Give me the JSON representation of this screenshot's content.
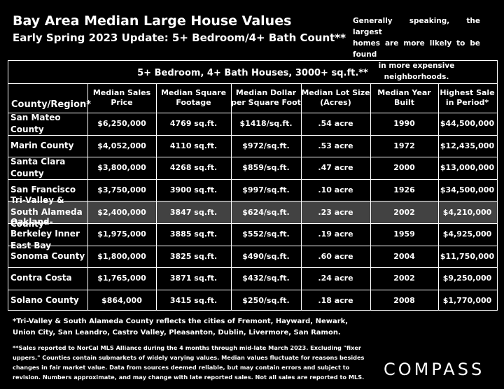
{
  "header": {
    "title": "Bay Area Median Large House Values",
    "subtitle": "Early Spring 2023 Update: 5+ Bedroom/4+ Bath Count**"
  },
  "note_lines": [
    "Generally speaking, the largest",
    "homes are more likely to be found",
    "in more expensive neighborhoods."
  ],
  "table": {
    "title": "5+ Bedroom, 4+ Bath Houses, 3000+ sq.ft.**",
    "columns": [
      [
        "County/Region*"
      ],
      [
        "Median Sales",
        "Price"
      ],
      [
        "Median Square",
        "Footage"
      ],
      [
        "Median Dollar",
        "per Square Foot"
      ],
      [
        "Median Lot Size",
        "(Acres)"
      ],
      [
        "Median Year",
        "Built"
      ],
      [
        "Highest Sale",
        "in Period*"
      ]
    ],
    "rows": [
      [
        "San Mateo County",
        "$6,250,000",
        "4769 sq.ft.",
        "$1418/sq.ft.",
        ".54 acre",
        "1990",
        "$44,500,000"
      ],
      [
        "Marin County",
        "$4,052,000",
        "4110 sq.ft.",
        "$972/sq.ft.",
        ".53 acre",
        "1972",
        "$12,435,000"
      ],
      [
        "Santa Clara County",
        "$3,800,000",
        "4268 sq.ft.",
        "$859/sq.ft.",
        ".47 acre",
        "2000",
        "$13,000,000"
      ],
      [
        "San Francisco",
        "$3,750,000",
        "3900 sq.ft.",
        "$997/sq.ft.",
        ".10 acre",
        "1926",
        "$34,500,000"
      ],
      [
        "Tri-Valley & South Alameda County*",
        "$2,400,000",
        "3847 sq.ft.",
        "$624/sq.ft.",
        ".23 acre",
        "2002",
        "$4,210,000"
      ],
      [
        "Oakland-Berkeley Inner East Bay",
        "$1,975,000",
        "3885 sq.ft.",
        "$552/sq.ft.",
        ".19 acre",
        "1959",
        "$4,925,000"
      ],
      [
        "Sonoma County",
        "$1,800,000",
        "3825 sq.ft.",
        "$490/sq.ft.",
        ".60 acre",
        "2004",
        "$11,750,000"
      ],
      [
        "Contra Costa",
        "$1,765,000",
        "3871 sq.ft.",
        "$432/sq.ft.",
        ".24 acre",
        "2002",
        "$9,250,000"
      ],
      [
        "Solano County",
        "$864,000",
        "3415 sq.ft.",
        "$250/sq.ft.",
        ".18 acre",
        "2008",
        "$1,770,000"
      ]
    ],
    "highlight_row": "Tri-Valley & South Alameda County*"
  },
  "footnote1_lines": [
    "*Tri-Valley & South Alameda County reflects the cities of Fremont, Hayward, Newark,",
    "Union City, San Leandro, Castro Valley, Pleasanton, Dublin, Livermore, San Ramon."
  ],
  "footnote2_lines": [
    "**Sales reported to NorCal MLS Alliance during the 4 months through mid-late March 2023. Excluding \"fixer",
    "uppers.\" Counties contain submarkets of widely varying values. Median values fluctuate for reasons besides",
    "changes in fair market value. Data from sources deemed reliable, but may contain errors and subject to",
    "revision.  Numbers approximate, and may change with late reported sales. Not all sales are reported to MLS."
  ],
  "logo": "COMPASS",
  "colors": {
    "background": "#000000",
    "text": "#ffffff",
    "highlight_row": "#424242"
  }
}
